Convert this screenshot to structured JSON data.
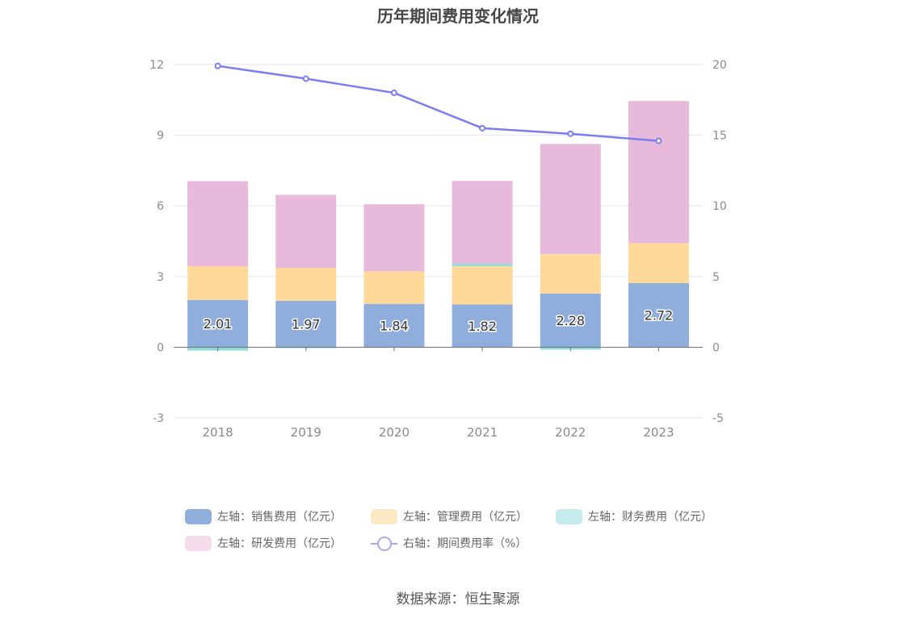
{
  "chart_data": {
    "type": "bar",
    "title": "历年期间费用变化情况",
    "categories": [
      "2018",
      "2019",
      "2020",
      "2021",
      "2022",
      "2023"
    ],
    "stacked": true,
    "series": [
      {
        "name": "左轴：销售费用（亿元）",
        "axis": "left",
        "values": [
          2.01,
          1.97,
          1.84,
          1.82,
          2.28,
          2.72
        ],
        "color": "#8faedb",
        "labels": [
          "2.01",
          "1.97",
          "1.84",
          "1.82",
          "2.28",
          "2.72"
        ]
      },
      {
        "name": "左轴：管理费用（亿元）",
        "axis": "left",
        "values": [
          1.43,
          1.4,
          1.38,
          1.62,
          1.67,
          1.7
        ],
        "color": "#fed99a",
        "legend_color": "#fde8c4"
      },
      {
        "name": "左轴：财务费用（亿元）",
        "axis": "left",
        "values": [
          -0.14,
          -0.04,
          -0.02,
          0.1,
          -0.1,
          -0.02
        ],
        "color": "#8fdcdc",
        "legend_color": "#c5ecec"
      },
      {
        "name": "左轴：研发费用（亿元）",
        "axis": "left",
        "values": [
          3.61,
          3.1,
          2.85,
          3.52,
          4.68,
          6.03
        ],
        "color": "#e7b9da",
        "legend_color": "#f4dcec"
      },
      {
        "name": "右轴：期间费用率（%）",
        "type": "line",
        "axis": "right",
        "values": [
          19.9,
          19.0,
          18.0,
          15.5,
          15.1,
          14.6
        ],
        "color": "#7b7ef0"
      }
    ],
    "left_axis": {
      "min": -3,
      "max": 12,
      "ticks": [
        -3,
        0,
        3,
        6,
        9,
        12
      ]
    },
    "right_axis": {
      "min": -5,
      "max": 20,
      "ticks": [
        -5,
        0,
        5,
        10,
        15,
        20
      ]
    },
    "grid": true,
    "legend_position": "bottom"
  },
  "source": "数据来源：恒生聚源"
}
